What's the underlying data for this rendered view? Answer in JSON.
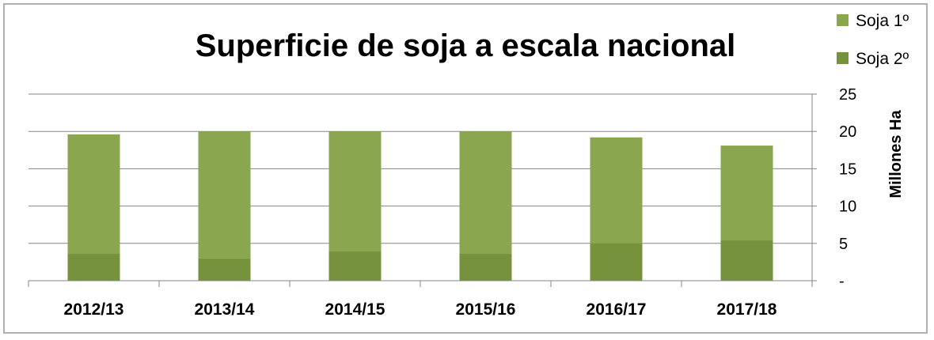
{
  "chart_data": {
    "type": "bar",
    "stacked": true,
    "title": "Superficie de soja a escala nacional",
    "xlabel": "",
    "ylabel": "Millones Ha",
    "ylim": [
      0,
      25
    ],
    "yticks": [
      "-",
      "5",
      "10",
      "15",
      "20",
      "25"
    ],
    "grid": true,
    "legend_position": "top-right",
    "categories": [
      "2012/13",
      "2013/14",
      "2014/15",
      "2015/16",
      "2016/17",
      "2017/18"
    ],
    "series": [
      {
        "name": "Soja 2º",
        "color": "#76923c",
        "values": [
          3.6,
          3.0,
          4.0,
          3.6,
          5.0,
          5.4
        ]
      },
      {
        "name": "Soja 1º",
        "color": "#8aa64f",
        "values": [
          16.0,
          17.0,
          16.0,
          16.4,
          14.2,
          12.7
        ]
      }
    ],
    "legend_order": [
      "Soja 1º",
      "Soja 2º"
    ]
  }
}
